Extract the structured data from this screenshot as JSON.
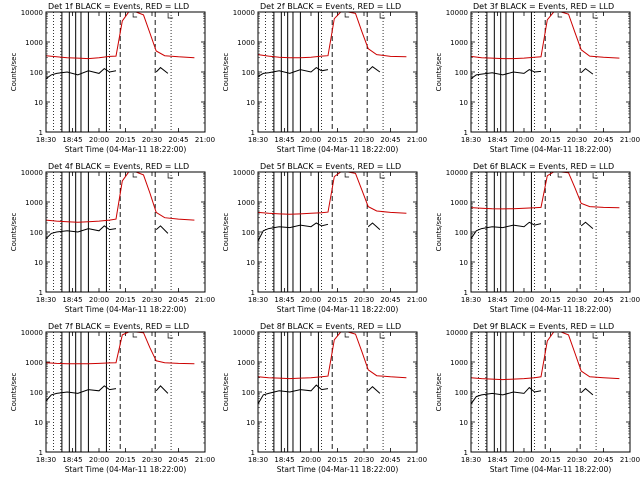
{
  "chart_data": {
    "type": "line",
    "y_scale": "log",
    "ylim": [
      1,
      10000
    ],
    "yticks": [
      "1",
      "10",
      "100",
      "1000",
      "10000"
    ],
    "xticks": [
      "18:30",
      "18:45",
      "20:00",
      "20:15",
      "20:30",
      "20:45",
      "21:00"
    ],
    "xlim_minutes": [
      0,
      150
    ],
    "ylabel": "Counts/sec",
    "xlabel": "Start Time (04-Mar-11 18:22:00)",
    "series_colors": {
      "events": "#000000",
      "lld": "#cc0000"
    },
    "solid_markers_min": [
      15,
      22,
      28,
      33,
      40,
      57
    ],
    "dotted_markers_min": [
      7,
      14,
      60,
      118
    ],
    "dashed_markers_min": [
      70,
      103
    ],
    "panels": [
      {
        "title": "Det  1f  BLACK = Events, RED = LLD",
        "lld": {
          "x": [
            0,
            10,
            20,
            30,
            40,
            50,
            60,
            66,
            72,
            78,
            85,
            92,
            98,
            104,
            112,
            125,
            140
          ],
          "y": [
            350,
            320,
            300,
            290,
            280,
            300,
            330,
            340,
            5000,
            10000,
            10000,
            8000,
            2000,
            500,
            350,
            320,
            300
          ]
        },
        "events": {
          "x": [
            0,
            5,
            10,
            20,
            30,
            40,
            50,
            55,
            60,
            66,
            104,
            108,
            115
          ],
          "y": [
            60,
            80,
            90,
            100,
            80,
            110,
            90,
            130,
            100,
            110,
            100,
            140,
            90
          ]
        }
      },
      {
        "title": "Det  2f  BLACK = Events, RED = LLD",
        "lld": {
          "x": [
            0,
            10,
            20,
            30,
            40,
            50,
            60,
            66,
            72,
            78,
            85,
            92,
            98,
            104,
            112,
            125,
            140
          ],
          "y": [
            380,
            340,
            310,
            300,
            300,
            310,
            340,
            350,
            6000,
            10000,
            10000,
            9000,
            2200,
            600,
            380,
            330,
            320
          ]
        },
        "events": {
          "x": [
            0,
            5,
            10,
            20,
            30,
            40,
            50,
            55,
            60,
            66,
            104,
            108,
            115
          ],
          "y": [
            70,
            90,
            95,
            110,
            90,
            120,
            100,
            140,
            110,
            120,
            110,
            150,
            100
          ]
        }
      },
      {
        "title": "Det  3f  BLACK = Events, RED = LLD",
        "lld": {
          "x": [
            0,
            10,
            20,
            30,
            40,
            50,
            60,
            66,
            72,
            78,
            85,
            92,
            98,
            104,
            112,
            125,
            140
          ],
          "y": [
            330,
            300,
            290,
            280,
            280,
            290,
            310,
            320,
            5500,
            10000,
            10000,
            8500,
            2100,
            550,
            340,
            310,
            290
          ]
        },
        "events": {
          "x": [
            0,
            5,
            10,
            20,
            30,
            40,
            50,
            55,
            60,
            66,
            104,
            108,
            115
          ],
          "y": [
            60,
            80,
            85,
            95,
            80,
            100,
            90,
            120,
            100,
            105,
            95,
            130,
            85
          ]
        }
      },
      {
        "title": "Det  4f  BLACK = Events, RED = LLD",
        "lld": {
          "x": [
            0,
            10,
            20,
            30,
            40,
            50,
            60,
            66,
            72,
            78,
            85,
            92,
            98,
            104,
            112,
            125,
            140
          ],
          "y": [
            250,
            230,
            220,
            210,
            220,
            230,
            250,
            270,
            5000,
            10000,
            10000,
            8000,
            2000,
            450,
            300,
            270,
            250
          ]
        },
        "events": {
          "x": [
            0,
            5,
            10,
            20,
            30,
            40,
            50,
            55,
            60,
            66,
            104,
            108,
            115
          ],
          "y": [
            60,
            90,
            100,
            110,
            100,
            130,
            110,
            160,
            120,
            130,
            120,
            160,
            90
          ]
        }
      },
      {
        "title": "Det  5f  BLACK = Events, RED = LLD",
        "lld": {
          "x": [
            0,
            10,
            20,
            30,
            40,
            50,
            60,
            66,
            72,
            78,
            85,
            92,
            98,
            104,
            112,
            125,
            140
          ],
          "y": [
            450,
            420,
            400,
            390,
            400,
            420,
            440,
            460,
            7000,
            10000,
            10000,
            9000,
            2500,
            700,
            500,
            450,
            420
          ]
        },
        "events": {
          "x": [
            0,
            5,
            10,
            20,
            30,
            40,
            50,
            55,
            60,
            66,
            104,
            108,
            115
          ],
          "y": [
            50,
            110,
            130,
            150,
            140,
            170,
            150,
            200,
            160,
            180,
            150,
            200,
            120
          ]
        }
      },
      {
        "title": "Det  6f  BLACK = Events, RED = LLD",
        "lld": {
          "x": [
            0,
            10,
            20,
            30,
            40,
            50,
            60,
            66,
            72,
            78,
            85,
            92,
            98,
            104,
            112,
            125,
            140
          ],
          "y": [
            650,
            620,
            600,
            590,
            600,
            620,
            640,
            660,
            7500,
            10000,
            10000,
            9500,
            3000,
            900,
            700,
            660,
            640
          ]
        },
        "events": {
          "x": [
            0,
            5,
            10,
            20,
            30,
            40,
            50,
            55,
            60,
            66,
            104,
            108,
            115
          ],
          "y": [
            60,
            110,
            130,
            150,
            140,
            170,
            150,
            210,
            170,
            190,
            160,
            210,
            130
          ]
        }
      },
      {
        "title": "Det  7f  BLACK = Events, RED = LLD",
        "lld": {
          "x": [
            0,
            10,
            20,
            30,
            40,
            50,
            60,
            66,
            72,
            78,
            85,
            92,
            98,
            104,
            112,
            125,
            140
          ],
          "y": [
            950,
            900,
            880,
            870,
            880,
            900,
            930,
            950,
            8000,
            10000,
            10000,
            9500,
            3000,
            1100,
            950,
            900,
            880
          ]
        },
        "events": {
          "x": [
            0,
            5,
            10,
            20,
            30,
            40,
            50,
            55,
            60,
            66,
            104,
            108,
            115
          ],
          "y": [
            50,
            80,
            90,
            100,
            90,
            120,
            110,
            160,
            120,
            130,
            110,
            160,
            90
          ]
        }
      },
      {
        "title": "Det  8f  BLACK = Events, RED = LLD",
        "lld": {
          "x": [
            0,
            10,
            20,
            30,
            40,
            50,
            60,
            66,
            72,
            78,
            85,
            92,
            98,
            104,
            112,
            125,
            140
          ],
          "y": [
            320,
            300,
            290,
            280,
            290,
            300,
            320,
            340,
            5500,
            10000,
            10000,
            8500,
            2200,
            550,
            350,
            320,
            300
          ]
        },
        "events": {
          "x": [
            0,
            5,
            10,
            20,
            30,
            40,
            50,
            55,
            60,
            66,
            104,
            108,
            115
          ],
          "y": [
            40,
            80,
            90,
            110,
            100,
            120,
            110,
            170,
            120,
            130,
            110,
            150,
            90
          ]
        }
      },
      {
        "title": "Det  9f  BLACK = Events, RED = LLD",
        "lld": {
          "x": [
            0,
            10,
            20,
            30,
            40,
            50,
            60,
            66,
            72,
            78,
            85,
            92,
            98,
            104,
            112,
            125,
            140
          ],
          "y": [
            300,
            280,
            270,
            260,
            270,
            280,
            300,
            320,
            5000,
            10000,
            10000,
            8000,
            2000,
            500,
            320,
            300,
            280
          ]
        },
        "events": {
          "x": [
            0,
            5,
            10,
            20,
            30,
            40,
            50,
            55,
            60,
            66,
            104,
            108,
            115
          ],
          "y": [
            40,
            70,
            80,
            90,
            80,
            100,
            90,
            140,
            100,
            110,
            95,
            130,
            80
          ]
        }
      }
    ]
  }
}
